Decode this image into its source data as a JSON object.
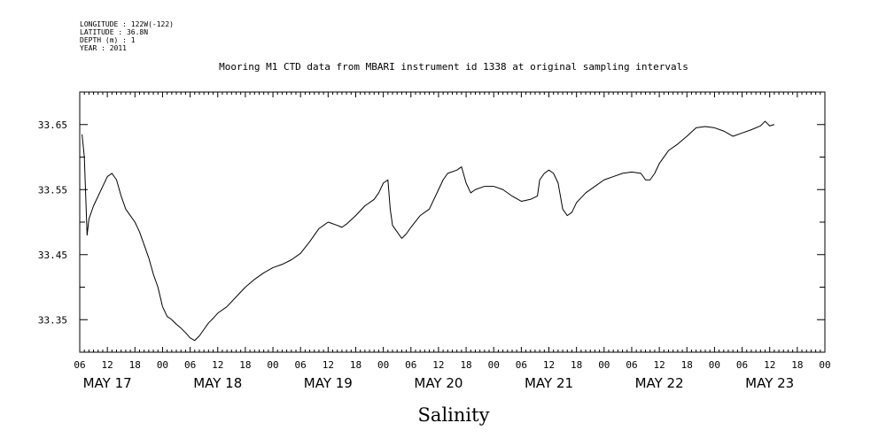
{
  "header": {
    "meta_lines": [
      "LONGITUDE : 122W(-122)",
      "LATITUDE : 36.8N",
      "DEPTH (m) : 1",
      "YEAR : 2011"
    ]
  },
  "chart_data": {
    "type": "line",
    "title": "Mooring M1 CTD data from MBARI instrument id 1338 at original sampling intervals",
    "xlabel": "",
    "ylabel": "",
    "axis_title": "Salinity",
    "x_unit": "hours from 2011-05-17 00:00",
    "xlim": [
      6,
      168
    ],
    "ylim": [
      33.3,
      33.7
    ],
    "grid": false,
    "y_ticks": [
      33.35,
      33.45,
      33.55,
      33.65
    ],
    "y_tick_labels": [
      "33.35",
      "33.45",
      "33.55",
      "33.65"
    ],
    "x_hour_ticks": [
      6,
      12,
      18,
      24,
      30,
      36,
      42,
      48,
      54,
      60,
      66,
      72,
      78,
      84,
      90,
      96,
      102,
      108,
      114,
      120,
      126,
      132,
      138,
      144,
      150,
      156,
      162,
      168
    ],
    "x_hour_labels": [
      "06",
      "12",
      "18",
      "00",
      "06",
      "12",
      "18",
      "00",
      "06",
      "12",
      "18",
      "00",
      "06",
      "12",
      "18",
      "00",
      "06",
      "12",
      "18",
      "00",
      "06",
      "12",
      "18",
      "00",
      "06",
      "12",
      "18",
      "00"
    ],
    "day_labels": [
      {
        "label": "MAY 17",
        "center": 12
      },
      {
        "label": "MAY 18",
        "center": 36
      },
      {
        "label": "MAY 19",
        "center": 60
      },
      {
        "label": "MAY 20",
        "center": 84
      },
      {
        "label": "MAY 21",
        "center": 108
      },
      {
        "label": "MAY 22",
        "center": 132
      },
      {
        "label": "MAY 23",
        "center": 156
      }
    ],
    "series": [
      {
        "values": [
          [
            6.5,
            33.635
          ],
          [
            7.0,
            33.6
          ],
          [
            7.3,
            33.54
          ],
          [
            7.6,
            33.48
          ],
          [
            8.0,
            33.505
          ],
          [
            9.0,
            33.525
          ],
          [
            10.0,
            33.54
          ],
          [
            11.0,
            33.555
          ],
          [
            12.0,
            33.57
          ],
          [
            13.0,
            33.575
          ],
          [
            14.0,
            33.565
          ],
          [
            15.0,
            33.54
          ],
          [
            16.0,
            33.52
          ],
          [
            17.0,
            33.51
          ],
          [
            18.0,
            33.5
          ],
          [
            19.0,
            33.485
          ],
          [
            20.0,
            33.465
          ],
          [
            21.0,
            33.445
          ],
          [
            22.0,
            33.42
          ],
          [
            23.0,
            33.4
          ],
          [
            24.0,
            33.37
          ],
          [
            25.0,
            33.355
          ],
          [
            26.0,
            33.35
          ],
          [
            27.0,
            33.343
          ],
          [
            28.0,
            33.337
          ],
          [
            29.0,
            33.33
          ],
          [
            30.0,
            33.322
          ],
          [
            31.0,
            33.318
          ],
          [
            32.0,
            33.325
          ],
          [
            33.0,
            33.335
          ],
          [
            34.0,
            33.345
          ],
          [
            35.0,
            33.352
          ],
          [
            36.0,
            33.36
          ],
          [
            38.0,
            33.37
          ],
          [
            40.0,
            33.385
          ],
          [
            42.0,
            33.4
          ],
          [
            44.0,
            33.412
          ],
          [
            46.0,
            33.422
          ],
          [
            48.0,
            33.43
          ],
          [
            50.0,
            33.435
          ],
          [
            52.0,
            33.442
          ],
          [
            54.0,
            33.452
          ],
          [
            56.0,
            33.47
          ],
          [
            58.0,
            33.49
          ],
          [
            60.0,
            33.5
          ],
          [
            62.0,
            33.495
          ],
          [
            63.0,
            33.492
          ],
          [
            64.0,
            33.497
          ],
          [
            66.0,
            33.51
          ],
          [
            68.0,
            33.525
          ],
          [
            70.0,
            33.535
          ],
          [
            71.0,
            33.545
          ],
          [
            72.0,
            33.56
          ],
          [
            73.0,
            33.565
          ],
          [
            73.5,
            33.52
          ],
          [
            74.0,
            33.495
          ],
          [
            75.0,
            33.485
          ],
          [
            76.0,
            33.475
          ],
          [
            77.0,
            33.482
          ],
          [
            78.0,
            33.492
          ],
          [
            80.0,
            33.51
          ],
          [
            82.0,
            33.52
          ],
          [
            84.0,
            33.55
          ],
          [
            85.0,
            33.565
          ],
          [
            86.0,
            33.575
          ],
          [
            88.0,
            33.58
          ],
          [
            89.0,
            33.585
          ],
          [
            90.0,
            33.56
          ],
          [
            91.0,
            33.545
          ],
          [
            92.0,
            33.55
          ],
          [
            94.0,
            33.555
          ],
          [
            96.0,
            33.555
          ],
          [
            98.0,
            33.55
          ],
          [
            100.0,
            33.54
          ],
          [
            102.0,
            33.532
          ],
          [
            104.0,
            33.535
          ],
          [
            105.5,
            33.54
          ],
          [
            106.0,
            33.565
          ],
          [
            107.0,
            33.575
          ],
          [
            108.0,
            33.58
          ],
          [
            109.0,
            33.575
          ],
          [
            110.0,
            33.56
          ],
          [
            111.0,
            33.52
          ],
          [
            112.0,
            33.51
          ],
          [
            113.0,
            33.515
          ],
          [
            114.0,
            33.53
          ],
          [
            116.0,
            33.545
          ],
          [
            118.0,
            33.555
          ],
          [
            120.0,
            33.565
          ],
          [
            122.0,
            33.57
          ],
          [
            124.0,
            33.575
          ],
          [
            126.0,
            33.577
          ],
          [
            128.0,
            33.575
          ],
          [
            129.0,
            33.565
          ],
          [
            130.0,
            33.565
          ],
          [
            131.0,
            33.575
          ],
          [
            132.0,
            33.59
          ],
          [
            134.0,
            33.61
          ],
          [
            136.0,
            33.62
          ],
          [
            138.0,
            33.632
          ],
          [
            140.0,
            33.645
          ],
          [
            142.0,
            33.647
          ],
          [
            144.0,
            33.645
          ],
          [
            146.0,
            33.64
          ],
          [
            148.0,
            33.632
          ],
          [
            150.0,
            33.637
          ],
          [
            152.0,
            33.642
          ],
          [
            154.0,
            33.648
          ],
          [
            155.0,
            33.655
          ],
          [
            156.0,
            33.648
          ],
          [
            157.0,
            33.65
          ]
        ]
      }
    ]
  }
}
